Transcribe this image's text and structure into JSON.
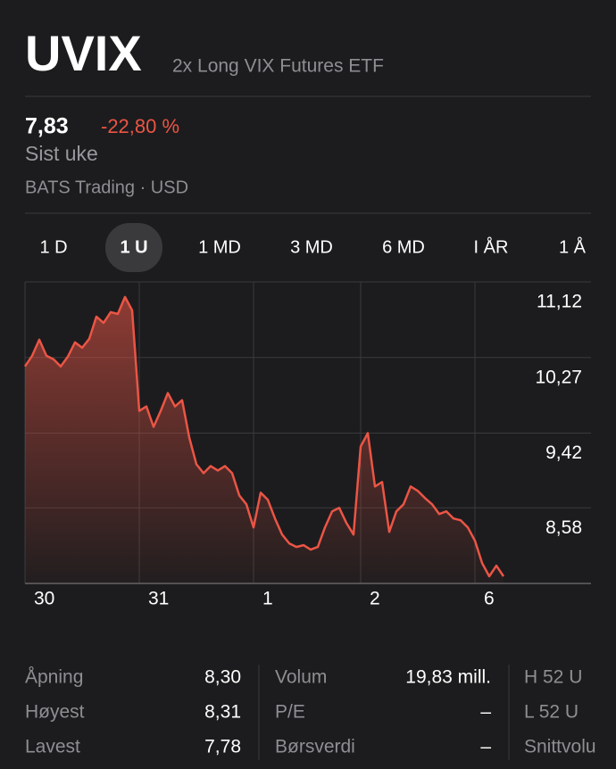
{
  "header": {
    "symbol": "UVIX",
    "name": "2x Long VIX Futures ETF"
  },
  "quote": {
    "price": "7,83",
    "change": "-22,80 %",
    "period": "Sist uke",
    "exchange": "BATS Trading · USD"
  },
  "tabs": {
    "items": [
      "1 D",
      "1 U",
      "1 MD",
      "3 MD",
      "6 MD",
      "I ÅR",
      "1 Å"
    ],
    "selected": 1
  },
  "chart_data": {
    "type": "line",
    "color": "#eb5545",
    "values": [
      10.17,
      10.29,
      10.47,
      10.29,
      10.25,
      10.17,
      10.28,
      10.44,
      10.38,
      10.48,
      10.73,
      10.66,
      10.78,
      10.76,
      10.95,
      10.8,
      9.67,
      9.72,
      9.49,
      9.67,
      9.87,
      9.72,
      9.79,
      9.37,
      9.07,
      8.97,
      9.05,
      9.0,
      9.05,
      8.97,
      8.72,
      8.62,
      8.36,
      8.75,
      8.67,
      8.46,
      8.28,
      8.18,
      8.14,
      8.16,
      8.11,
      8.14,
      8.36,
      8.54,
      8.58,
      8.41,
      8.28,
      9.27,
      9.42,
      8.82,
      8.87,
      8.31,
      8.54,
      8.62,
      8.82,
      8.77,
      8.69,
      8.62,
      8.51,
      8.54,
      8.46,
      8.44,
      8.36,
      8.21,
      7.96,
      7.81,
      7.93,
      7.81
    ],
    "xlim": [
      0,
      79
    ],
    "xticks": [
      {
        "value": 0,
        "label": "30"
      },
      {
        "value": 16,
        "label": "31"
      },
      {
        "value": 32,
        "label": "1"
      },
      {
        "value": 47,
        "label": "2"
      },
      {
        "value": 63,
        "label": "6"
      }
    ],
    "ylim": [
      7.73,
      11.12
    ],
    "yticks": [
      {
        "value": 11.12,
        "label": "11,12"
      },
      {
        "value": 10.27,
        "label": "10,27"
      },
      {
        "value": 9.42,
        "label": "9,42"
      },
      {
        "value": 8.58,
        "label": "8,58"
      }
    ],
    "grid": true
  },
  "stats": {
    "columns": [
      [
        [
          "Åpning",
          "8,30"
        ],
        [
          "Høyest",
          "8,31"
        ],
        [
          "Lavest",
          "7,78"
        ]
      ],
      [
        [
          "Volum",
          "19,83 mill."
        ],
        [
          "P/E",
          "–"
        ],
        [
          "Børsverdi",
          "–"
        ]
      ],
      [
        [
          "H 52 U"
        ],
        [
          "L 52 U"
        ],
        [
          "Snittvolu"
        ]
      ]
    ]
  }
}
